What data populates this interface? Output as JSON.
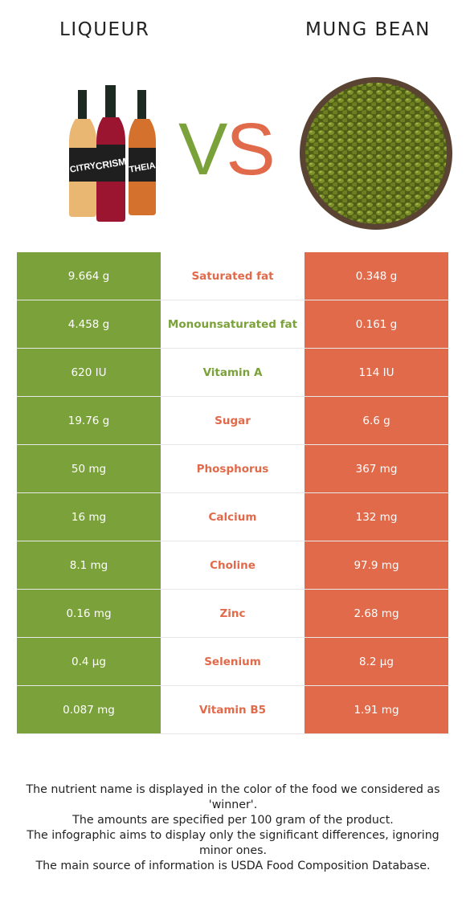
{
  "header": {
    "left_title": "LIQUEUR",
    "right_title": "MUNG BEAN",
    "vs_v": "V",
    "vs_s": "S"
  },
  "images": {
    "left": "liqueur-bottles",
    "right": "mung-bean-bowl"
  },
  "colors": {
    "left_food": "#7ba23a",
    "right_food": "#e16a4a"
  },
  "bottle_labels": [
    "CITRY",
    "CRISM",
    "THEIA"
  ],
  "rows": [
    {
      "left": "9.664 g",
      "nutrient": "Saturated fat",
      "right": "0.348 g",
      "winner": "right"
    },
    {
      "left": "4.458 g",
      "nutrient": "Monounsaturated fat",
      "right": "0.161 g",
      "winner": "left"
    },
    {
      "left": "620 IU",
      "nutrient": "Vitamin A",
      "right": "114 IU",
      "winner": "left"
    },
    {
      "left": "19.76 g",
      "nutrient": "Sugar",
      "right": "6.6 g",
      "winner": "right"
    },
    {
      "left": "50 mg",
      "nutrient": "Phosphorus",
      "right": "367 mg",
      "winner": "right"
    },
    {
      "left": "16 mg",
      "nutrient": "Calcium",
      "right": "132 mg",
      "winner": "right"
    },
    {
      "left": "8.1 mg",
      "nutrient": "Choline",
      "right": "97.9 mg",
      "winner": "right"
    },
    {
      "left": "0.16 mg",
      "nutrient": "Zinc",
      "right": "2.68 mg",
      "winner": "right"
    },
    {
      "left": "0.4 µg",
      "nutrient": "Selenium",
      "right": "8.2 µg",
      "winner": "right"
    },
    {
      "left": "0.087 mg",
      "nutrient": "Vitamin B5",
      "right": "1.91 mg",
      "winner": "right"
    }
  ],
  "footer": {
    "line1": "The nutrient name is displayed in the color of the food we considered as 'winner'.",
    "line2": "The amounts are specified per 100 gram of the product.",
    "line3": "The infographic aims to display only the significant differences, ignoring minor ones.",
    "line4": "The main source of information is USDA Food Composition Database."
  }
}
